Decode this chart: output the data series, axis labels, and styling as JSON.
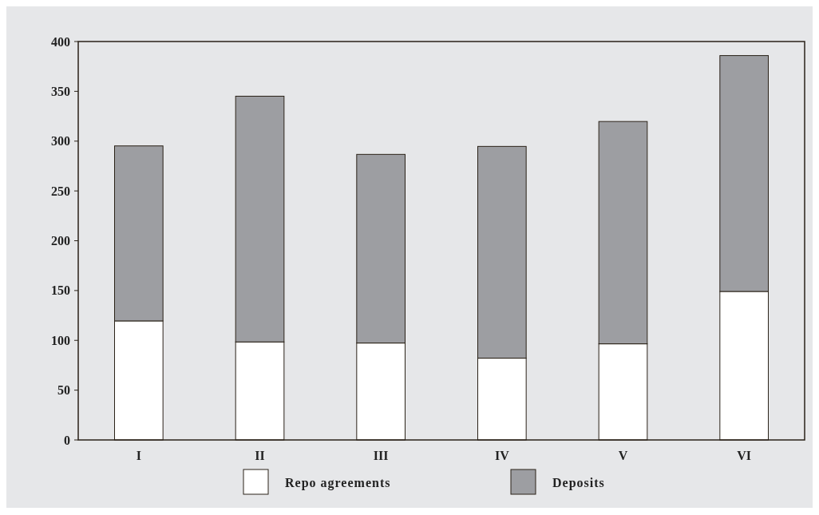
{
  "chart_data": {
    "type": "bar",
    "stacked": true,
    "categories": [
      "I",
      "II",
      "III",
      "IV",
      "V",
      "VI"
    ],
    "series": [
      {
        "name": "Repo agreements",
        "color": "#ffffff",
        "values": [
          119.5,
          98.4,
          97.3,
          82.1,
          96.5,
          149.1
        ]
      },
      {
        "name": "Deposits",
        "color": "#9d9ea2",
        "values": [
          175.7,
          246.7,
          189.4,
          212.6,
          223.2,
          236.8
        ]
      }
    ],
    "ylim": [
      0,
      400
    ],
    "yticks": [
      0,
      50,
      100,
      150,
      200,
      250,
      300,
      350,
      400
    ],
    "grid": false,
    "legend": "bottom"
  }
}
